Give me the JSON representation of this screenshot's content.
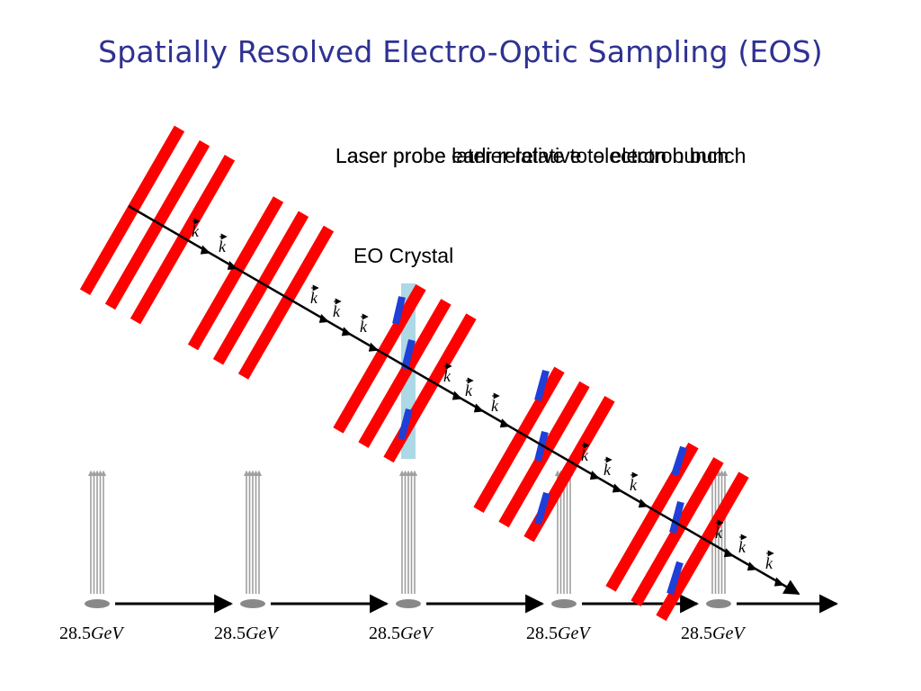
{
  "title": "Spatially Resolved Electro-Optic Sampling (EOS)",
  "labels": {
    "caption_a": "Laser probe earlier relative to electron bunch",
    "caption_b": "Laser probe later relative to electron bunch",
    "crystal": "EO Crystal",
    "wave_vector": "k"
  },
  "bunches": [
    {
      "energy_value": "28.5",
      "energy_unit": "GeV"
    },
    {
      "energy_value": "28.5",
      "energy_unit": "GeV"
    },
    {
      "energy_value": "28.5",
      "energy_unit": "GeV"
    },
    {
      "energy_value": "28.5",
      "energy_unit": "GeV"
    },
    {
      "energy_value": "28.5",
      "energy_unit": "GeV"
    }
  ],
  "colors": {
    "title": "#2e3192",
    "laser_stripe": "#ff0000",
    "crystal": "#add8e6",
    "field_overlap": "#1f3fd6",
    "field_lines": "#a0a0a0",
    "bunch": "#888888"
  }
}
